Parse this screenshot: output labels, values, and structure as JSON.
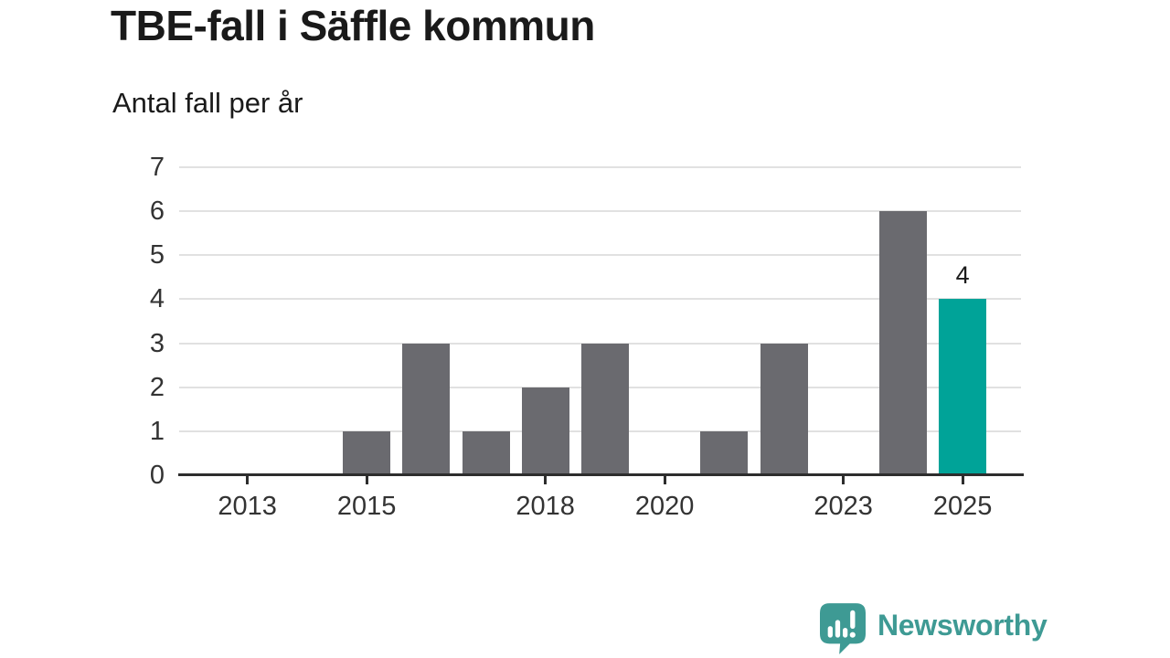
{
  "chart_data": {
    "type": "bar",
    "title": "TBE-fall i Säffle kommun",
    "subtitle": "Antal fall per år",
    "xlabel": "",
    "ylabel": "Antal fall per år",
    "x": [
      2013,
      2014,
      2015,
      2016,
      2017,
      2018,
      2019,
      2020,
      2021,
      2022,
      2023,
      2024,
      2025
    ],
    "values": [
      0,
      0,
      1,
      3,
      1,
      2,
      3,
      0,
      1,
      3,
      0,
      6,
      4
    ],
    "highlight_x": 2025,
    "bar_label": {
      "x": 2025,
      "text": "4"
    },
    "x_ticks": [
      2013,
      2015,
      2018,
      2020,
      2023,
      2025
    ],
    "y_ticks": [
      0,
      1,
      2,
      3,
      4,
      5,
      6,
      7
    ],
    "ylim": [
      0,
      7
    ],
    "grid": "horizontal",
    "legend": "none",
    "colors": {
      "bar": "#6a6a6f",
      "highlight": "#00a398",
      "grid": "#e1e1e1",
      "axis": "#2d2d2d",
      "text": "#1a1a1a",
      "tick_text": "#333333"
    }
  },
  "footer": {
    "brand": "Newsworthy",
    "brand_color": "#3e9a94"
  }
}
